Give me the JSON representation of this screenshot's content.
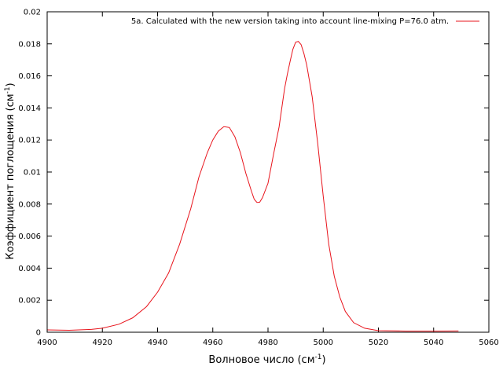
{
  "chart_data": {
    "type": "line",
    "xlabel_main": "Волновое число (см",
    "xlabel_sup": "-1",
    "xlabel_end": ")",
    "ylabel_main": "Коэффициент поглощения (см",
    "ylabel_sup": "-1",
    "ylabel_end": ")",
    "xlim": [
      4900,
      5060
    ],
    "ylim": [
      0,
      0.02
    ],
    "xticks": [
      "4900",
      "4920",
      "4940",
      "4960",
      "4980",
      "5000",
      "5020",
      "5040",
      "5060"
    ],
    "yticks": [
      "0",
      "0.002",
      "0.004",
      "0.006",
      "0.008",
      "0.01",
      "0.012",
      "0.014",
      "0.016",
      "0.018",
      "0.02"
    ],
    "grid": false,
    "legend_position": "top-right",
    "series": [
      {
        "name": "5a. Calculated with the new  version taking into account line-mixing  P=76.0 atm.",
        "color": "#e8141c",
        "x": [
          4900,
          4908,
          4916,
          4920,
          4926,
          4931,
          4936,
          4940,
          4944,
          4948,
          4952,
          4955,
          4958,
          4960,
          4962,
          4964,
          4966,
          4968,
          4970,
          4972,
          4974,
          4975,
          4976,
          4977,
          4978,
          4980,
          4982,
          4984,
          4986,
          4987,
          4988,
          4989,
          4990,
          4991,
          4992,
          4993,
          4994,
          4996,
          4998,
          5000,
          5002,
          5004,
          5006,
          5008,
          5011,
          5015,
          5020,
          5030,
          5040,
          5049
        ],
        "y": [
          0.00015,
          0.00012,
          0.00018,
          0.00025,
          0.0005,
          0.0009,
          0.0016,
          0.0025,
          0.0037,
          0.0055,
          0.0077,
          0.0097,
          0.0112,
          0.012,
          0.01255,
          0.01283,
          0.01278,
          0.0122,
          0.0112,
          0.0099,
          0.0088,
          0.0083,
          0.0081,
          0.00812,
          0.0084,
          0.0093,
          0.0111,
          0.0128,
          0.0152,
          0.0161,
          0.0169,
          0.01765,
          0.0181,
          0.01815,
          0.01795,
          0.0174,
          0.0167,
          0.0147,
          0.0118,
          0.0085,
          0.0055,
          0.0035,
          0.0022,
          0.0013,
          0.0006,
          0.00025,
          0.0001,
          7e-05,
          7e-05,
          8e-05
        ]
      }
    ]
  }
}
